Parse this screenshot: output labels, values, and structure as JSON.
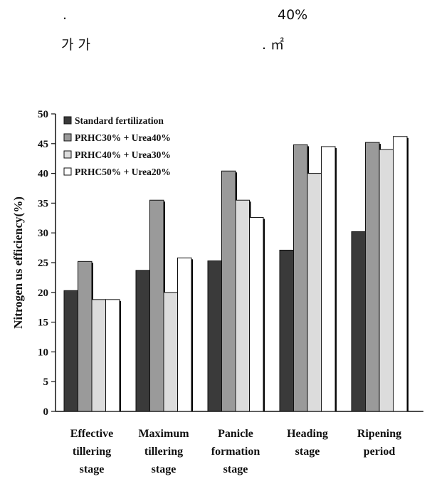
{
  "header_text": {
    "line1_left": ".",
    "line1_right": "40%",
    "line2_left": "가 가",
    "line2_right": ". ㎡"
  },
  "colors": {
    "series": [
      "#3a3a3a",
      "#9a9a9a",
      "#dcdcdc",
      "#ffffff"
    ],
    "stroke": "#111111"
  },
  "chart_data": {
    "type": "bar",
    "title": "",
    "xlabel": "",
    "ylabel": "Nitrogen us efficiency(%)",
    "ylim": [
      0,
      50
    ],
    "yticks": [
      0,
      5,
      10,
      15,
      20,
      25,
      30,
      35,
      40,
      45,
      50
    ],
    "legend_position": "top-left",
    "categories": [
      [
        "Effective",
        "tillering",
        "stage"
      ],
      [
        "Maximum",
        "tillering",
        "stage"
      ],
      [
        "Panicle",
        "formation",
        "stage"
      ],
      [
        "Heading",
        "stage"
      ],
      [
        "Ripening",
        "period"
      ]
    ],
    "series": [
      {
        "name": "Standard fertilization",
        "values": [
          20.3,
          23.7,
          25.3,
          27.1,
          30.2
        ]
      },
      {
        "name": "PRHC30% + Urea40%",
        "values": [
          25.2,
          35.5,
          40.4,
          44.8,
          45.2
        ]
      },
      {
        "name": "PRHC40% + Urea30%",
        "values": [
          18.8,
          20.0,
          35.5,
          40.0,
          44.0
        ]
      },
      {
        "name": "PRHC50% + Urea20%",
        "values": [
          18.8,
          25.8,
          32.6,
          44.5,
          46.2
        ]
      }
    ]
  }
}
